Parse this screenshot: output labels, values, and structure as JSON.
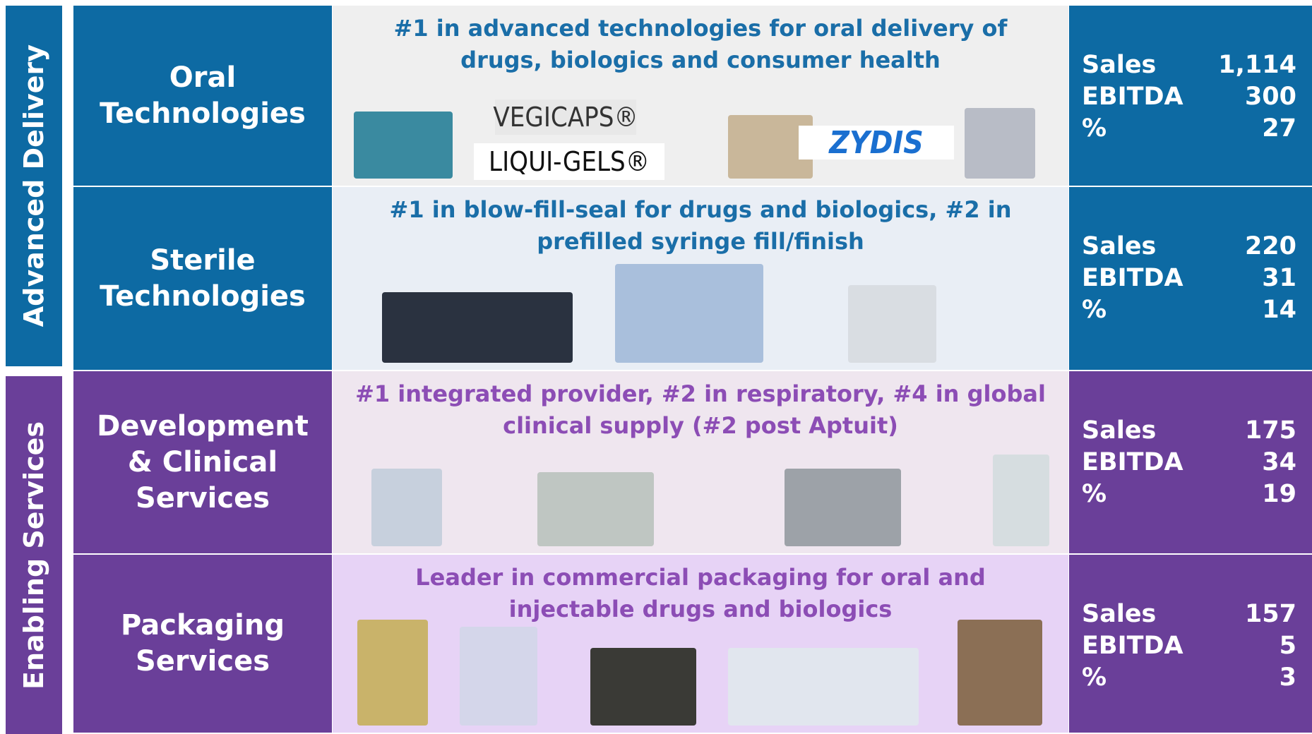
{
  "groups": [
    {
      "label": "Advanced Delivery",
      "rows": [
        {
          "name": "Oral Technologies",
          "description": "#1 in advanced technologies for oral delivery of drugs, biologics and consumer health",
          "logos": [
            "VEGICAPS®",
            "LIQUI-GELS®",
            "ZYDIS"
          ],
          "metrics": [
            {
              "label": "Sales",
              "value": "1,114"
            },
            {
              "label": "EBITDA",
              "value": "300"
            },
            {
              "label": "%",
              "value": "27"
            }
          ]
        },
        {
          "name": "Sterile Technologies",
          "description": "#1 in blow-fill-seal for drugs and biologics, #2 in prefilled syringe fill/finish",
          "metrics": [
            {
              "label": "Sales",
              "value": "220"
            },
            {
              "label": "EBITDA",
              "value": "31"
            },
            {
              "label": "%",
              "value": "14"
            }
          ]
        }
      ]
    },
    {
      "label": "Enabling Services",
      "rows": [
        {
          "name": "Development & Clinical Services",
          "description": "#1 integrated provider, #2 in respiratory, #4 in global clinical supply (#2 post Aptuit)",
          "metrics": [
            {
              "label": "Sales",
              "value": "175"
            },
            {
              "label": "EBITDA",
              "value": "34"
            },
            {
              "label": "%",
              "value": "19"
            }
          ]
        },
        {
          "name": "Packaging Services",
          "description": "Leader in commercial packaging for oral and injectable drugs and biologics",
          "metrics": [
            {
              "label": "Sales",
              "value": "157"
            },
            {
              "label": "EBITDA",
              "value": "5"
            },
            {
              "label": "%",
              "value": "3"
            }
          ]
        }
      ]
    }
  ]
}
